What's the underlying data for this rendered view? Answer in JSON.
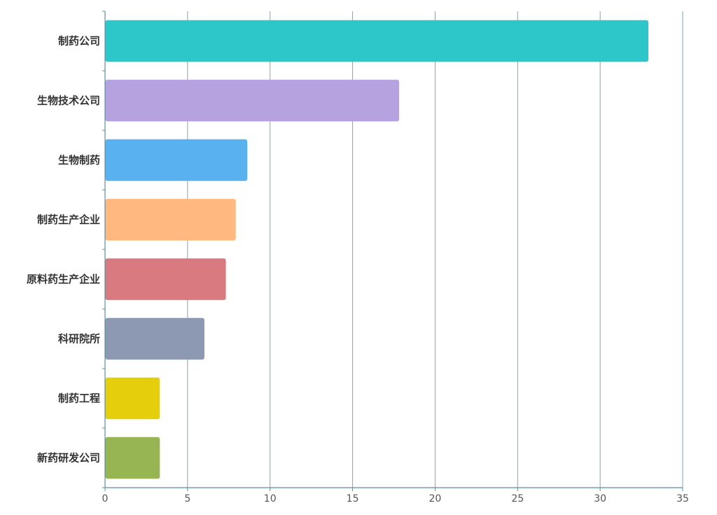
{
  "chart_data": {
    "type": "bar",
    "orientation": "horizontal",
    "categories": [
      "制药公司",
      "生物技术公司",
      "生物制药",
      "制药生产企业",
      "原料药生产企业",
      "科研院所",
      "制药工程",
      "新药研发公司"
    ],
    "values": [
      32.9,
      17.8,
      8.6,
      7.9,
      7.3,
      6.0,
      3.3,
      3.3
    ],
    "colors": [
      "#2ec7c9",
      "#b6a2de",
      "#5ab1ef",
      "#ffb980",
      "#d87a80",
      "#8d98b3",
      "#e5cf0d",
      "#97b552"
    ],
    "title": "",
    "xlabel": "",
    "ylabel": "",
    "xlim": [
      0,
      35
    ],
    "x_ticks": [
      0,
      5,
      10,
      15,
      20,
      25,
      30,
      35
    ],
    "grid": "vertical",
    "legend": "none",
    "axis_color": "#5b8fa0",
    "grid_color": "#7fa6b3"
  }
}
